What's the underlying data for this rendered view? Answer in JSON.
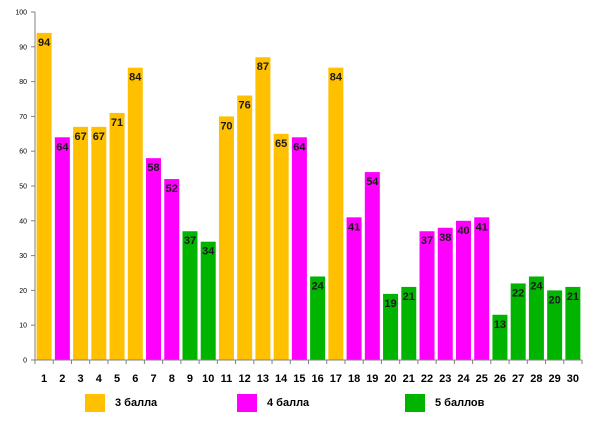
{
  "chart_data": {
    "type": "bar",
    "categories": [
      "1",
      "2",
      "3",
      "4",
      "5",
      "6",
      "7",
      "8",
      "9",
      "10",
      "11",
      "12",
      "13",
      "14",
      "15",
      "16",
      "17",
      "18",
      "19",
      "20",
      "21",
      "22",
      "23",
      "24",
      "25",
      "26",
      "27",
      "28",
      "29",
      "30"
    ],
    "values": [
      94,
      64,
      67,
      67,
      71,
      84,
      58,
      52,
      37,
      34,
      70,
      76,
      87,
      65,
      64,
      24,
      84,
      41,
      54,
      19,
      21,
      37,
      38,
      40,
      41,
      13,
      22,
      24,
      20,
      21
    ],
    "groups": [
      "3",
      "4",
      "3",
      "3",
      "3",
      "3",
      "4",
      "4",
      "5",
      "5",
      "3",
      "3",
      "3",
      "3",
      "4",
      "5",
      "3",
      "4",
      "4",
      "5",
      "5",
      "4",
      "4",
      "4",
      "4",
      "5",
      "5",
      "5",
      "5",
      "5"
    ],
    "ylim": [
      0,
      100
    ],
    "yticks": [
      0,
      10,
      20,
      30,
      40,
      50,
      60,
      70,
      80,
      90,
      100
    ],
    "grid": false,
    "legend_position": "bottom",
    "legend": [
      {
        "key": "3",
        "label": "3 балла",
        "color": "#FFC000"
      },
      {
        "key": "4",
        "label": "4 балла",
        "color": "#FF00FF"
      },
      {
        "key": "5",
        "label": "5 баллов",
        "color": "#00B400"
      }
    ]
  }
}
